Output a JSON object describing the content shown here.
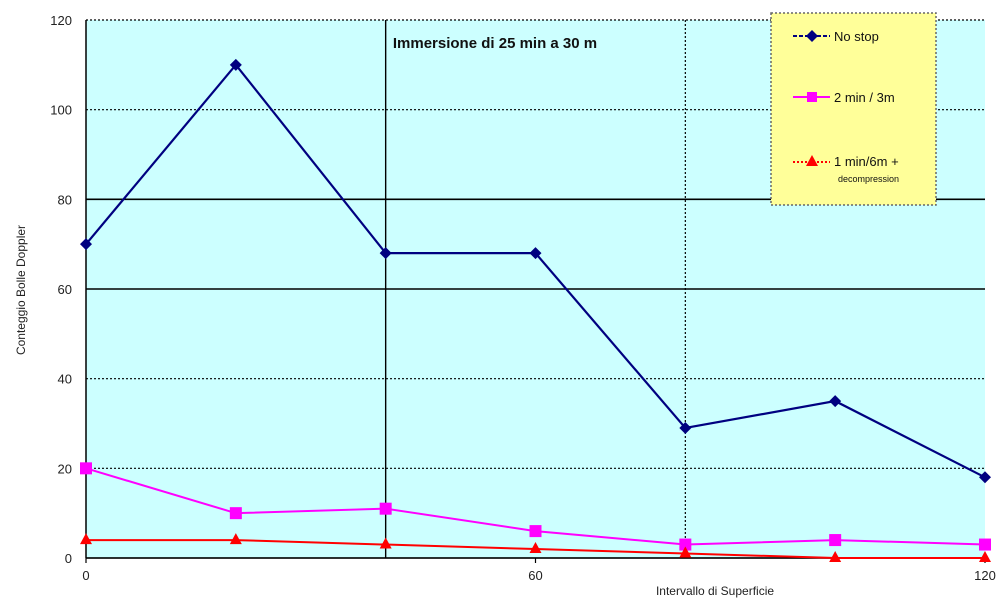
{
  "chart_data": {
    "type": "line",
    "title": "Immersione di 25 min a 30 m",
    "xlabel": "Intervallo di Superficie",
    "ylabel": "Conteggio Bolle Doppler",
    "xlim": [
      0,
      120
    ],
    "ylim": [
      0,
      120
    ],
    "x_ticks": [
      "0",
      "60",
      "120"
    ],
    "y_ticks": [
      "0",
      "20",
      "40",
      "60",
      "80",
      "100",
      "120"
    ],
    "grid": {
      "horizontal": true,
      "vertical": true
    },
    "plot_background": "#ccffff",
    "legend": {
      "position": "top-right",
      "background": "#ffff99",
      "note": "decompression"
    },
    "series": [
      {
        "name": "No stop",
        "color": "#000080",
        "marker": "diamond",
        "x": [
          0,
          20,
          40,
          60,
          80,
          100,
          120
        ],
        "values": [
          70,
          110,
          68,
          68,
          29,
          35,
          18
        ]
      },
      {
        "name": "2 min / 3m",
        "color": "#ff00ff",
        "marker": "square",
        "x": [
          0,
          20,
          40,
          60,
          80,
          100,
          120
        ],
        "values": [
          20,
          10,
          11,
          6,
          3,
          4,
          3
        ]
      },
      {
        "name": "1 min/6m +",
        "color": "#ff0000",
        "marker": "triangle",
        "x": [
          0,
          20,
          40,
          60,
          80,
          100,
          120
        ],
        "values": [
          4,
          4,
          3,
          2,
          1,
          0,
          0
        ]
      }
    ]
  }
}
